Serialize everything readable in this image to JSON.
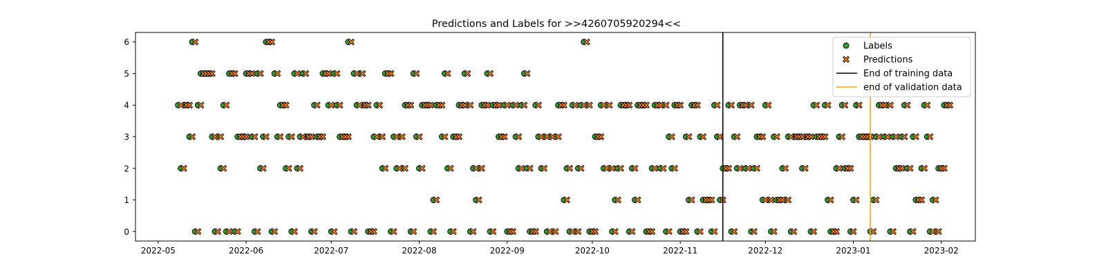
{
  "chart_data": {
    "type": "scatter",
    "title": "Predictions and Labels for >>4260705920294<<",
    "xlabel": "",
    "ylabel": "",
    "x_type": "date",
    "xlim": [
      "2022-04-23",
      "2023-02-13"
    ],
    "ylim": [
      -0.3,
      6.3
    ],
    "y_ticks": [
      0,
      1,
      2,
      3,
      4,
      5,
      6
    ],
    "x_ticks": [
      "2022-05",
      "2022-06",
      "2022-07",
      "2022-08",
      "2022-09",
      "2022-10",
      "2022-11",
      "2022-12",
      "2023-01",
      "2023-02"
    ],
    "x_tick_dates": [
      "2022-05-01",
      "2022-06-01",
      "2022-07-01",
      "2022-08-01",
      "2022-09-01",
      "2022-10-01",
      "2022-11-01",
      "2022-12-01",
      "2023-01-01",
      "2023-02-01"
    ],
    "grid": false,
    "legend_position": "top-right",
    "series": [
      {
        "name": "Labels",
        "marker": "circle",
        "color": "#2ca02c"
      },
      {
        "name": "Predictions",
        "marker": "x",
        "color": "#ff7f0e"
      }
    ],
    "vlines": [
      {
        "name": "End of training data",
        "x": "2022-11-16",
        "color": "#000000"
      },
      {
        "name": "end of validation data",
        "x": "2023-01-07",
        "color": "#ffa500"
      }
    ],
    "points": [
      [
        "2022-05-08",
        4,
        4
      ],
      [
        "2022-05-09",
        2,
        2
      ],
      [
        "2022-05-10",
        4,
        4
      ],
      [
        "2022-05-11",
        4,
        4
      ],
      [
        "2022-05-12",
        3,
        3
      ],
      [
        "2022-05-13",
        6,
        6
      ],
      [
        "2022-05-14",
        0,
        0
      ],
      [
        "2022-05-15",
        4,
        4
      ],
      [
        "2022-05-16",
        5,
        5
      ],
      [
        "2022-05-17",
        5,
        5
      ],
      [
        "2022-05-18",
        5,
        5
      ],
      [
        "2022-05-19",
        5,
        5
      ],
      [
        "2022-05-20",
        3,
        3
      ],
      [
        "2022-05-21",
        0,
        0
      ],
      [
        "2022-05-22",
        3,
        3
      ],
      [
        "2022-05-23",
        2,
        2
      ],
      [
        "2022-05-24",
        4,
        4
      ],
      [
        "2022-05-25",
        0,
        0
      ],
      [
        "2022-05-26",
        5,
        5
      ],
      [
        "2022-05-27",
        5,
        5
      ],
      [
        "2022-05-28",
        0,
        0
      ],
      [
        "2022-05-29",
        3,
        3
      ],
      [
        "2022-05-30",
        3,
        3
      ],
      [
        "2022-05-31",
        3,
        3
      ],
      [
        "2022-06-01",
        5,
        5
      ],
      [
        "2022-06-02",
        5,
        5
      ],
      [
        "2022-06-03",
        3,
        3
      ],
      [
        "2022-06-04",
        0,
        0
      ],
      [
        "2022-06-05",
        5,
        5
      ],
      [
        "2022-06-06",
        2,
        2
      ],
      [
        "2022-06-07",
        3,
        3
      ],
      [
        "2022-06-08",
        6,
        6
      ],
      [
        "2022-06-09",
        6,
        6
      ],
      [
        "2022-06-10",
        0,
        0
      ],
      [
        "2022-06-11",
        5,
        5
      ],
      [
        "2022-06-12",
        3,
        3
      ],
      [
        "2022-06-13",
        4,
        4
      ],
      [
        "2022-06-14",
        4,
        4
      ],
      [
        "2022-06-15",
        2,
        2
      ],
      [
        "2022-06-16",
        3,
        3
      ],
      [
        "2022-06-17",
        0,
        0
      ],
      [
        "2022-06-18",
        5,
        5
      ],
      [
        "2022-06-19",
        2,
        2
      ],
      [
        "2022-06-20",
        3,
        3
      ],
      [
        "2022-06-21",
        5,
        5
      ],
      [
        "2022-06-22",
        3,
        3
      ],
      [
        "2022-06-23",
        3,
        3
      ],
      [
        "2022-06-24",
        0,
        0
      ],
      [
        "2022-06-25",
        4,
        4
      ],
      [
        "2022-06-26",
        3,
        3
      ],
      [
        "2022-06-27",
        3,
        3
      ],
      [
        "2022-06-28",
        5,
        5
      ],
      [
        "2022-06-29",
        5,
        5
      ],
      [
        "2022-06-30",
        4,
        4
      ],
      [
        "2022-07-01",
        0,
        0
      ],
      [
        "2022-07-02",
        5,
        5
      ],
      [
        "2022-07-03",
        4,
        4
      ],
      [
        "2022-07-04",
        3,
        3
      ],
      [
        "2022-07-05",
        3,
        3
      ],
      [
        "2022-07-06",
        3,
        3
      ],
      [
        "2022-07-07",
        6,
        6
      ],
      [
        "2022-07-08",
        0,
        0
      ],
      [
        "2022-07-09",
        5,
        5
      ],
      [
        "2022-07-10",
        4,
        4
      ],
      [
        "2022-07-11",
        5,
        5
      ],
      [
        "2022-07-12",
        4,
        4
      ],
      [
        "2022-07-13",
        4,
        4
      ],
      [
        "2022-07-14",
        0,
        0
      ],
      [
        "2022-07-15",
        0,
        0
      ],
      [
        "2022-07-16",
        3,
        3
      ],
      [
        "2022-07-17",
        4,
        4
      ],
      [
        "2022-07-18",
        3,
        3
      ],
      [
        "2022-07-19",
        2,
        2
      ],
      [
        "2022-07-20",
        5,
        5
      ],
      [
        "2022-07-21",
        5,
        5
      ],
      [
        "2022-07-22",
        0,
        0
      ],
      [
        "2022-07-23",
        3,
        3
      ],
      [
        "2022-07-24",
        2,
        2
      ],
      [
        "2022-07-25",
        3,
        3
      ],
      [
        "2022-07-26",
        2,
        2
      ],
      [
        "2022-07-27",
        4,
        4
      ],
      [
        "2022-07-28",
        4,
        4
      ],
      [
        "2022-07-29",
        0,
        0
      ],
      [
        "2022-07-30",
        5,
        5
      ],
      [
        "2022-07-31",
        3,
        3
      ],
      [
        "2022-08-01",
        2,
        2
      ],
      [
        "2022-08-02",
        4,
        4
      ],
      [
        "2022-08-03",
        4,
        4
      ],
      [
        "2022-08-04",
        4,
        4
      ],
      [
        "2022-08-05",
        0,
        0
      ],
      [
        "2022-08-06",
        1,
        1
      ],
      [
        "2022-08-07",
        4,
        4
      ],
      [
        "2022-08-08",
        4,
        4
      ],
      [
        "2022-08-09",
        3,
        3
      ],
      [
        "2022-08-10",
        5,
        5
      ],
      [
        "2022-08-11",
        2,
        2
      ],
      [
        "2022-08-12",
        0,
        0
      ],
      [
        "2022-08-13",
        3,
        3
      ],
      [
        "2022-08-14",
        3,
        3
      ],
      [
        "2022-08-15",
        4,
        4
      ],
      [
        "2022-08-16",
        4,
        4
      ],
      [
        "2022-08-17",
        5,
        5
      ],
      [
        "2022-08-18",
        4,
        4
      ],
      [
        "2022-08-19",
        0,
        0
      ],
      [
        "2022-08-20",
        2,
        2
      ],
      [
        "2022-08-21",
        1,
        1
      ],
      [
        "2022-08-22",
        2,
        2
      ],
      [
        "2022-08-23",
        4,
        4
      ],
      [
        "2022-08-24",
        4,
        4
      ],
      [
        "2022-08-25",
        5,
        5
      ],
      [
        "2022-08-26",
        0,
        0
      ],
      [
        "2022-08-27",
        4,
        4
      ],
      [
        "2022-08-28",
        4,
        4
      ],
      [
        "2022-08-29",
        3,
        3
      ],
      [
        "2022-08-30",
        3,
        3
      ],
      [
        "2022-08-31",
        4,
        4
      ],
      [
        "2022-09-01",
        0,
        0
      ],
      [
        "2022-09-02",
        0,
        0
      ],
      [
        "2022-09-03",
        4,
        4
      ],
      [
        "2022-09-04",
        3,
        3
      ],
      [
        "2022-09-05",
        2,
        2
      ],
      [
        "2022-09-06",
        4,
        4
      ],
      [
        "2022-09-07",
        5,
        5
      ],
      [
        "2022-09-08",
        2,
        2
      ],
      [
        "2022-09-09",
        0,
        0
      ],
      [
        "2022-09-10",
        0,
        0
      ],
      [
        "2022-09-11",
        4,
        4
      ],
      [
        "2022-09-12",
        3,
        3
      ],
      [
        "2022-09-13",
        2,
        2
      ],
      [
        "2022-09-14",
        3,
        3
      ],
      [
        "2022-09-15",
        0,
        0
      ],
      [
        "2022-09-16",
        3,
        3
      ],
      [
        "2022-09-17",
        0,
        0
      ],
      [
        "2022-09-18",
        3,
        3
      ],
      [
        "2022-09-19",
        4,
        4
      ],
      [
        "2022-09-20",
        4,
        4
      ],
      [
        "2022-09-21",
        1,
        1
      ],
      [
        "2022-09-22",
        2,
        2
      ],
      [
        "2022-09-23",
        0,
        0
      ],
      [
        "2022-09-24",
        4,
        4
      ],
      [
        "2022-09-25",
        0,
        0
      ],
      [
        "2022-09-26",
        2,
        2
      ],
      [
        "2022-09-27",
        4,
        4
      ],
      [
        "2022-09-28",
        6,
        6
      ],
      [
        "2022-09-29",
        4,
        4
      ],
      [
        "2022-09-30",
        0,
        0
      ],
      [
        "2022-10-01",
        0,
        0
      ],
      [
        "2022-10-02",
        3,
        3
      ],
      [
        "2022-10-03",
        3,
        3
      ],
      [
        "2022-10-04",
        4,
        4
      ],
      [
        "2022-10-05",
        2,
        2
      ],
      [
        "2022-10-06",
        4,
        4
      ],
      [
        "2022-10-07",
        2,
        2
      ],
      [
        "2022-10-08",
        0,
        0
      ],
      [
        "2022-10-09",
        1,
        1
      ],
      [
        "2022-10-10",
        2,
        2
      ],
      [
        "2022-10-11",
        4,
        4
      ],
      [
        "2022-10-12",
        4,
        4
      ],
      [
        "2022-10-13",
        4,
        4
      ],
      [
        "2022-10-14",
        0,
        0
      ],
      [
        "2022-10-15",
        2,
        2
      ],
      [
        "2022-10-16",
        1,
        1
      ],
      [
        "2022-10-17",
        4,
        4
      ],
      [
        "2022-10-18",
        4,
        4
      ],
      [
        "2022-10-19",
        4,
        4
      ],
      [
        "2022-10-20",
        0,
        0
      ],
      [
        "2022-10-21",
        0,
        0
      ],
      [
        "2022-10-22",
        2,
        2
      ],
      [
        "2022-10-23",
        4,
        4
      ],
      [
        "2022-10-24",
        4,
        4
      ],
      [
        "2022-10-25",
        2,
        2
      ],
      [
        "2022-10-26",
        4,
        4
      ],
      [
        "2022-10-27",
        0,
        0
      ],
      [
        "2022-10-28",
        3,
        3
      ],
      [
        "2022-10-29",
        2,
        2
      ],
      [
        "2022-10-30",
        4,
        4
      ],
      [
        "2022-10-31",
        4,
        4
      ],
      [
        "2022-11-01",
        0,
        0
      ],
      [
        "2022-11-02",
        0,
        0
      ],
      [
        "2022-11-03",
        3,
        3
      ],
      [
        "2022-11-04",
        1,
        1
      ],
      [
        "2022-11-05",
        4,
        4
      ],
      [
        "2022-11-06",
        4,
        4
      ],
      [
        "2022-11-07",
        0,
        0
      ],
      [
        "2022-11-08",
        3,
        3
      ],
      [
        "2022-11-09",
        1,
        1
      ],
      [
        "2022-11-10",
        1,
        1
      ],
      [
        "2022-11-11",
        1,
        1
      ],
      [
        "2022-11-12",
        0,
        0
      ],
      [
        "2022-11-13",
        4,
        4
      ],
      [
        "2022-11-14",
        3,
        3
      ],
      [
        "2022-11-15",
        1,
        1
      ],
      [
        "2022-11-16",
        2,
        2
      ],
      [
        "2022-11-17",
        2,
        2
      ],
      [
        "2022-11-18",
        4,
        4
      ],
      [
        "2022-11-19",
        0,
        0
      ],
      [
        "2022-11-20",
        3,
        3
      ],
      [
        "2022-11-21",
        2,
        2
      ],
      [
        "2022-11-22",
        4,
        4
      ],
      [
        "2022-11-23",
        4,
        4
      ],
      [
        "2022-11-24",
        2,
        2
      ],
      [
        "2022-11-25",
        4,
        4
      ],
      [
        "2022-11-26",
        0,
        0
      ],
      [
        "2022-11-27",
        2,
        2
      ],
      [
        "2022-11-28",
        3,
        3
      ],
      [
        "2022-11-29",
        3,
        3
      ],
      [
        "2022-11-30",
        1,
        1
      ],
      [
        "2022-12-01",
        4,
        4
      ],
      [
        "2022-12-02",
        1,
        1
      ],
      [
        "2022-12-03",
        0,
        0
      ],
      [
        "2022-12-04",
        3,
        3
      ],
      [
        "2022-12-05",
        1,
        1
      ],
      [
        "2022-12-06",
        1,
        1
      ],
      [
        "2022-12-07",
        2,
        2
      ],
      [
        "2022-12-08",
        1,
        1
      ],
      [
        "2022-12-09",
        3,
        3
      ],
      [
        "2022-12-10",
        0,
        0
      ],
      [
        "2022-12-11",
        3,
        3
      ],
      [
        "2022-12-12",
        3,
        3
      ],
      [
        "2022-12-13",
        3,
        3
      ],
      [
        "2022-12-14",
        2,
        2
      ],
      [
        "2022-12-15",
        3,
        3
      ],
      [
        "2022-12-16",
        3,
        3
      ],
      [
        "2022-12-17",
        0,
        0
      ],
      [
        "2022-12-18",
        4,
        4
      ],
      [
        "2022-12-19",
        3,
        3
      ],
      [
        "2022-12-20",
        3,
        3
      ],
      [
        "2022-12-21",
        3,
        3
      ],
      [
        "2022-12-22",
        4,
        4
      ],
      [
        "2022-12-23",
        1,
        1
      ],
      [
        "2022-12-24",
        0,
        0
      ],
      [
        "2022-12-25",
        0,
        0
      ],
      [
        "2022-12-26",
        2,
        2
      ],
      [
        "2022-12-27",
        3,
        3
      ],
      [
        "2022-12-28",
        4,
        4
      ],
      [
        "2022-12-29",
        2,
        2
      ],
      [
        "2022-12-30",
        2,
        2
      ],
      [
        "2022-12-31",
        0,
        0
      ],
      [
        "2023-01-01",
        1,
        1
      ],
      [
        "2023-01-02",
        4,
        4
      ],
      [
        "2023-01-03",
        3,
        3
      ],
      [
        "2023-01-04",
        3,
        3
      ],
      [
        "2023-01-05",
        3,
        3
      ],
      [
        "2023-01-06",
        3,
        3
      ],
      [
        "2023-01-07",
        0,
        0
      ],
      [
        "2023-01-08",
        1,
        1
      ],
      [
        "2023-01-09",
        3,
        3
      ],
      [
        "2023-01-10",
        4,
        4
      ],
      [
        "2023-01-11",
        4,
        4
      ],
      [
        "2023-01-12",
        3,
        3
      ],
      [
        "2023-01-13",
        4,
        4
      ],
      [
        "2023-01-14",
        0,
        0
      ],
      [
        "2023-01-15",
        3,
        3
      ],
      [
        "2023-01-16",
        2,
        2
      ],
      [
        "2023-01-17",
        2,
        2
      ],
      [
        "2023-01-18",
        3,
        3
      ],
      [
        "2023-01-19",
        4,
        4
      ],
      [
        "2023-01-20",
        2,
        2
      ],
      [
        "2023-01-21",
        0,
        0
      ],
      [
        "2023-01-22",
        3,
        3
      ],
      [
        "2023-01-23",
        1,
        1
      ],
      [
        "2023-01-24",
        1,
        1
      ],
      [
        "2023-01-25",
        2,
        2
      ],
      [
        "2023-01-26",
        4,
        4
      ],
      [
        "2023-01-27",
        3,
        3
      ],
      [
        "2023-01-28",
        0,
        0
      ],
      [
        "2023-01-29",
        1,
        1
      ],
      [
        "2023-01-30",
        0,
        0
      ],
      [
        "2023-01-31",
        2,
        2
      ],
      [
        "2023-02-01",
        2,
        2
      ],
      [
        "2023-02-02",
        4,
        4
      ],
      [
        "2023-02-03",
        4,
        4
      ]
    ]
  }
}
